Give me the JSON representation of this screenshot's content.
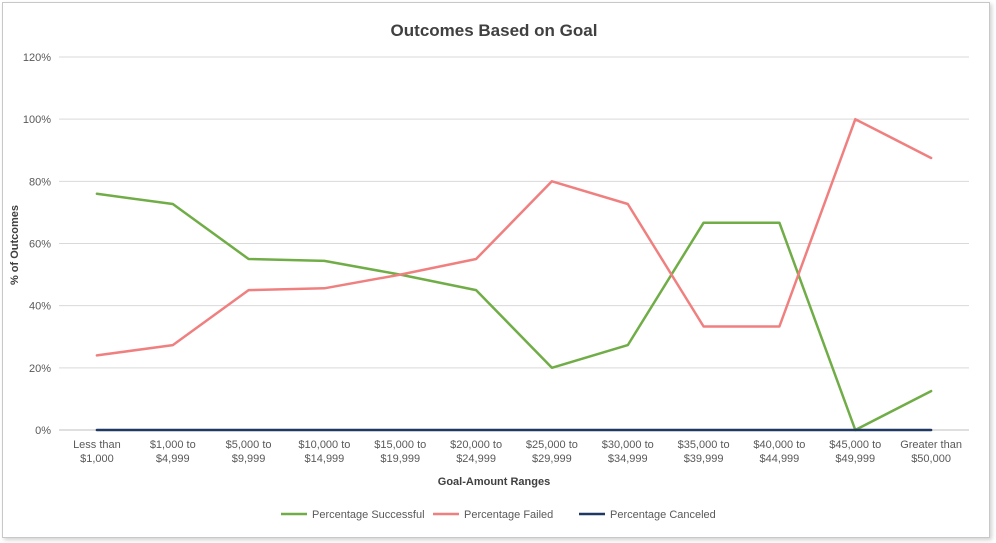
{
  "chart_data": {
    "type": "line",
    "title": "Outcomes Based on Goal",
    "xlabel": "Goal-Amount  Ranges",
    "ylabel": "% of Outcomes",
    "ylim": [
      0,
      1.2
    ],
    "yticks": [
      "0%",
      "20%",
      "40%",
      "60%",
      "80%",
      "100%",
      "120%"
    ],
    "ytick_values": [
      0,
      0.2,
      0.4,
      0.6,
      0.8,
      1.0,
      1.2
    ],
    "grid": true,
    "legend_position": "bottom",
    "categories": [
      [
        "Less than",
        "$1,000"
      ],
      [
        "$1,000 to",
        "$4,999"
      ],
      [
        "$5,000 to",
        "$9,999"
      ],
      [
        "$10,000 to",
        "$14,999"
      ],
      [
        "$15,000 to",
        "$19,999"
      ],
      [
        "$20,000 to",
        "$24,999"
      ],
      [
        "$25,000 to",
        "$29,999"
      ],
      [
        "$30,000 to",
        "$34,999"
      ],
      [
        "$35,000 to",
        "$39,999"
      ],
      [
        "$40,000 to",
        "$44,999"
      ],
      [
        "$45,000 to",
        "$49,999"
      ],
      [
        "Greater than",
        "$50,000"
      ]
    ],
    "series": [
      {
        "name": "Percentage Successful",
        "color": "#70ad47",
        "values": [
          0.76,
          0.727,
          0.55,
          0.544,
          0.5,
          0.45,
          0.2,
          0.273,
          0.667,
          0.667,
          0.0,
          0.125
        ]
      },
      {
        "name": "Percentage Failed",
        "color": "#f08080",
        "values": [
          0.24,
          0.273,
          0.45,
          0.456,
          0.5,
          0.55,
          0.8,
          0.727,
          0.333,
          0.333,
          1.0,
          0.875
        ]
      },
      {
        "name": "Percentage Canceled",
        "color": "#1f3864",
        "values": [
          0,
          0,
          0,
          0,
          0,
          0,
          0,
          0,
          0,
          0,
          0,
          0
        ]
      }
    ]
  }
}
